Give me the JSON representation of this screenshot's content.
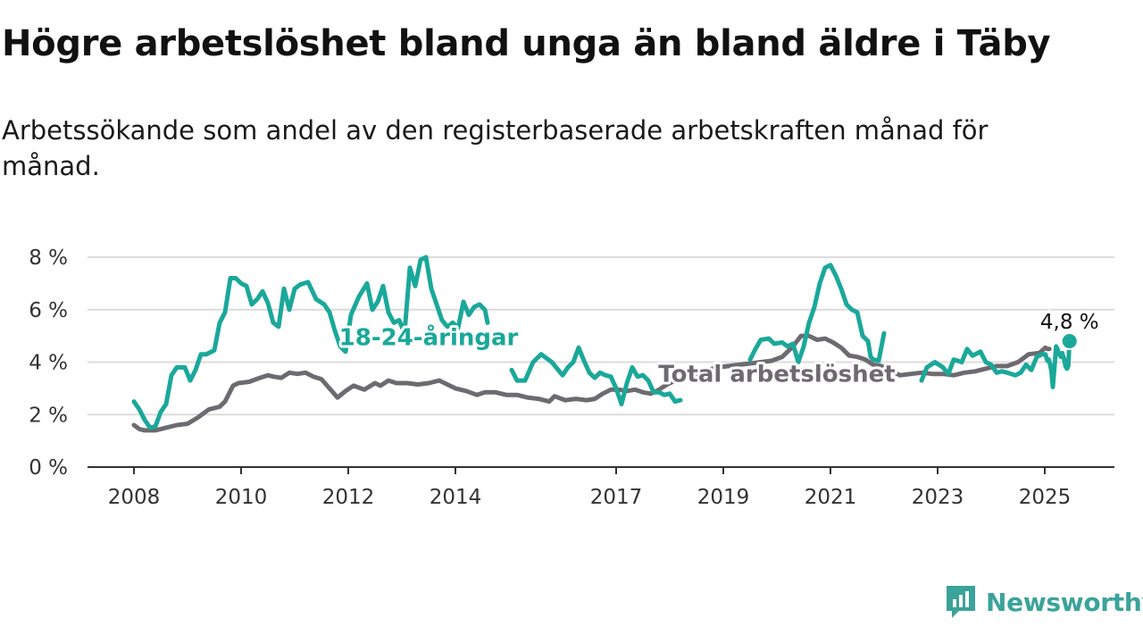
{
  "title": "Högre arbetslöshet bland unga än bland äldre i Täby",
  "subtitle": "Arbetssökande som andel av den registerbaserade arbetskraften månad för månad.",
  "brand": {
    "name": "Newsworthy"
  },
  "chart_data": {
    "type": "line",
    "xlim": [
      2007.85,
      2025.95
    ],
    "ylim": [
      0,
      8
    ],
    "x_ticks": [
      {
        "value": 2008,
        "label": "2008"
      },
      {
        "value": 2010,
        "label": "2010"
      },
      {
        "value": 2012,
        "label": "2012"
      },
      {
        "value": 2014,
        "label": "2014"
      },
      {
        "value": 2017,
        "label": "2017"
      },
      {
        "value": 2019,
        "label": "2019"
      },
      {
        "value": 2021,
        "label": "2021"
      },
      {
        "value": 2023,
        "label": "2023"
      },
      {
        "value": 2025,
        "label": "2025"
      }
    ],
    "y_ticks": [
      {
        "value": 0,
        "label": "0 %"
      },
      {
        "value": 2,
        "label": "2 %"
      },
      {
        "value": 4,
        "label": "4 %"
      },
      {
        "value": 6,
        "label": "6 %"
      },
      {
        "value": 8,
        "label": "8 %"
      }
    ],
    "grid": true,
    "series": [
      {
        "name": "Total arbetslöshet",
        "color": "#6d6a70",
        "points": [
          [
            2008.0,
            1.6
          ],
          [
            2008.1,
            1.45
          ],
          [
            2008.2,
            1.4
          ],
          [
            2008.4,
            1.4
          ],
          [
            2008.6,
            1.5
          ],
          [
            2008.8,
            1.6
          ],
          [
            2009.0,
            1.65
          ],
          [
            2009.2,
            1.9
          ],
          [
            2009.4,
            2.2
          ],
          [
            2009.6,
            2.3
          ],
          [
            2009.7,
            2.5
          ],
          [
            2009.85,
            3.1
          ],
          [
            2009.95,
            3.2
          ],
          [
            2010.15,
            3.25
          ],
          [
            2010.35,
            3.4
          ],
          [
            2010.5,
            3.5
          ],
          [
            2010.6,
            3.45
          ],
          [
            2010.75,
            3.4
          ],
          [
            2010.9,
            3.6
          ],
          [
            2011.05,
            3.55
          ],
          [
            2011.2,
            3.6
          ],
          [
            2011.35,
            3.45
          ],
          [
            2011.5,
            3.35
          ],
          [
            2011.65,
            3.0
          ],
          [
            2011.8,
            2.65
          ],
          [
            2011.95,
            2.9
          ],
          [
            2012.1,
            3.1
          ],
          [
            2012.3,
            2.95
          ],
          [
            2012.5,
            3.2
          ],
          [
            2012.6,
            3.1
          ],
          [
            2012.75,
            3.3
          ],
          [
            2012.9,
            3.2
          ],
          [
            2013.1,
            3.2
          ],
          [
            2013.3,
            3.15
          ],
          [
            2013.5,
            3.2
          ],
          [
            2013.7,
            3.3
          ],
          [
            2013.85,
            3.15
          ],
          [
            2014.0,
            3.0
          ],
          [
            2014.2,
            2.9
          ],
          [
            2014.4,
            2.75
          ],
          [
            2014.55,
            2.85
          ],
          [
            2014.75,
            2.85
          ],
          [
            2014.95,
            2.75
          ],
          [
            2015.15,
            2.75
          ],
          [
            2015.35,
            2.65
          ],
          [
            2015.55,
            2.6
          ],
          [
            2015.75,
            2.5
          ],
          [
            2015.85,
            2.7
          ],
          [
            2016.05,
            2.55
          ],
          [
            2016.25,
            2.6
          ],
          [
            2016.45,
            2.55
          ],
          [
            2016.6,
            2.6
          ],
          [
            2016.75,
            2.8
          ],
          [
            2016.9,
            2.95
          ],
          [
            2017.05,
            2.95
          ],
          [
            2017.2,
            2.9
          ],
          [
            2017.35,
            2.95
          ],
          [
            2017.5,
            2.85
          ],
          [
            2017.65,
            2.8
          ],
          [
            2017.8,
            2.95
          ],
          [
            2017.95,
            3.15
          ],
          [
            2018.1,
            3.3
          ],
          [
            2018.3,
            3.4
          ],
          [
            2018.5,
            3.55
          ],
          [
            2018.7,
            3.7
          ],
          [
            2018.9,
            3.8
          ],
          [
            2019.1,
            3.85
          ],
          [
            2019.3,
            3.9
          ],
          [
            2019.5,
            3.95
          ],
          [
            2019.7,
            4.0
          ],
          [
            2019.9,
            4.05
          ],
          [
            2020.1,
            4.2
          ],
          [
            2020.3,
            4.6
          ],
          [
            2020.45,
            5.0
          ],
          [
            2020.6,
            5.0
          ],
          [
            2020.75,
            4.85
          ],
          [
            2020.9,
            4.9
          ],
          [
            2021.05,
            4.75
          ],
          [
            2021.2,
            4.55
          ],
          [
            2021.35,
            4.25
          ],
          [
            2021.5,
            4.2
          ],
          [
            2021.65,
            4.1
          ],
          [
            2021.8,
            3.9
          ],
          [
            2021.95,
            3.85
          ],
          [
            2022.1,
            3.7
          ],
          [
            2022.3,
            3.5
          ],
          [
            2022.5,
            3.55
          ],
          [
            2022.7,
            3.6
          ],
          [
            2022.9,
            3.55
          ],
          [
            2023.1,
            3.55
          ],
          [
            2023.3,
            3.5
          ],
          [
            2023.5,
            3.6
          ],
          [
            2023.7,
            3.65
          ],
          [
            2023.9,
            3.75
          ],
          [
            2024.1,
            3.85
          ],
          [
            2024.3,
            3.85
          ],
          [
            2024.5,
            4.0
          ],
          [
            2024.7,
            4.3
          ],
          [
            2024.9,
            4.35
          ],
          [
            2025.05,
            4.55
          ],
          [
            2025.2,
            4.5
          ],
          [
            2025.35,
            4.5
          ]
        ]
      },
      {
        "name": "18-24-åringar",
        "color": "#1aa89a",
        "points": [
          [
            2008.0,
            2.5
          ],
          [
            2008.1,
            2.2
          ],
          [
            2008.2,
            1.8
          ],
          [
            2008.3,
            1.5
          ],
          [
            2008.4,
            1.55
          ],
          [
            2008.5,
            2.1
          ],
          [
            2008.6,
            2.4
          ],
          [
            2008.7,
            3.5
          ],
          [
            2008.8,
            3.8
          ],
          [
            2008.95,
            3.8
          ],
          [
            2009.05,
            3.3
          ],
          [
            2009.15,
            3.7
          ],
          [
            2009.25,
            4.3
          ],
          [
            2009.35,
            4.3
          ],
          [
            2009.5,
            4.45
          ],
          [
            2009.6,
            5.5
          ],
          [
            2009.7,
            5.9
          ],
          [
            2009.8,
            7.2
          ],
          [
            2009.9,
            7.2
          ],
          [
            2010.0,
            7.0
          ],
          [
            2010.1,
            6.9
          ],
          [
            2010.2,
            6.2
          ],
          [
            2010.3,
            6.4
          ],
          [
            2010.4,
            6.7
          ],
          [
            2010.5,
            6.25
          ],
          [
            2010.6,
            5.5
          ],
          [
            2010.7,
            5.35
          ],
          [
            2010.8,
            6.8
          ],
          [
            2010.9,
            6.0
          ],
          [
            2011.0,
            6.8
          ],
          [
            2011.1,
            6.95
          ],
          [
            2011.25,
            7.05
          ],
          [
            2011.4,
            6.4
          ],
          [
            2011.55,
            6.2
          ],
          [
            2011.65,
            5.9
          ],
          [
            2011.75,
            5.2
          ],
          [
            2011.85,
            4.6
          ],
          [
            2011.95,
            4.4
          ],
          [
            2012.05,
            5.8
          ],
          [
            2012.2,
            6.5
          ],
          [
            2012.35,
            7.0
          ],
          [
            2012.45,
            6.0
          ],
          [
            2012.55,
            6.3
          ],
          [
            2012.65,
            6.9
          ],
          [
            2012.75,
            5.9
          ],
          [
            2012.85,
            5.5
          ],
          [
            2012.95,
            5.6
          ],
          [
            2013.05,
            5.1
          ],
          [
            2013.15,
            7.6
          ],
          [
            2013.25,
            6.9
          ],
          [
            2013.35,
            7.9
          ],
          [
            2013.45,
            8.0
          ],
          [
            2013.55,
            6.8
          ],
          [
            2013.65,
            6.2
          ],
          [
            2013.75,
            5.6
          ],
          [
            2013.85,
            5.35
          ],
          [
            2013.95,
            5.5
          ],
          [
            2014.05,
            5.3
          ],
          [
            2014.15,
            6.3
          ],
          [
            2014.25,
            5.8
          ],
          [
            2014.35,
            6.1
          ],
          [
            2014.45,
            6.2
          ],
          [
            2014.55,
            6.0
          ],
          [
            2014.6,
            5.5
          ]
        ]
      },
      {
        "name": "",
        "color": "#1aa89a",
        "points": [
          [
            2015.05,
            3.7
          ],
          [
            2015.15,
            3.3
          ],
          [
            2015.3,
            3.3
          ],
          [
            2015.45,
            4.0
          ],
          [
            2015.6,
            4.3
          ],
          [
            2015.8,
            4.0
          ],
          [
            2016.0,
            3.5
          ],
          [
            2016.1,
            3.8
          ],
          [
            2016.2,
            4.0
          ],
          [
            2016.3,
            4.55
          ],
          [
            2016.4,
            4.05
          ],
          [
            2016.5,
            3.6
          ],
          [
            2016.6,
            3.4
          ],
          [
            2016.7,
            3.6
          ],
          [
            2016.8,
            3.5
          ],
          [
            2016.9,
            3.45
          ],
          [
            2017.0,
            3.0
          ],
          [
            2017.1,
            2.4
          ],
          [
            2017.2,
            3.2
          ],
          [
            2017.3,
            3.8
          ],
          [
            2017.4,
            3.45
          ],
          [
            2017.5,
            3.5
          ],
          [
            2017.6,
            3.3
          ],
          [
            2017.7,
            2.85
          ],
          [
            2017.8,
            2.85
          ],
          [
            2017.9,
            2.75
          ],
          [
            2018.0,
            2.8
          ],
          [
            2018.1,
            2.5
          ],
          [
            2018.2,
            2.55
          ]
        ]
      },
      {
        "name": "",
        "color": "#1aa89a",
        "points": [
          [
            2019.5,
            4.1
          ],
          [
            2019.6,
            4.5
          ],
          [
            2019.7,
            4.85
          ],
          [
            2019.85,
            4.9
          ],
          [
            2019.95,
            4.7
          ],
          [
            2020.1,
            4.75
          ],
          [
            2020.2,
            4.6
          ],
          [
            2020.3,
            4.7
          ],
          [
            2020.4,
            4.0
          ],
          [
            2020.5,
            4.6
          ],
          [
            2020.6,
            5.5
          ],
          [
            2020.7,
            6.1
          ],
          [
            2020.8,
            7.0
          ],
          [
            2020.9,
            7.6
          ],
          [
            2021.0,
            7.7
          ],
          [
            2021.1,
            7.3
          ],
          [
            2021.2,
            6.8
          ],
          [
            2021.3,
            6.2
          ],
          [
            2021.4,
            6.0
          ],
          [
            2021.5,
            5.9
          ],
          [
            2021.6,
            5.0
          ],
          [
            2021.7,
            4.8
          ],
          [
            2021.75,
            4.2
          ],
          [
            2021.8,
            4.1
          ],
          [
            2021.9,
            4.05
          ],
          [
            2022.0,
            5.1
          ]
        ]
      },
      {
        "name": "",
        "color": "#1aa89a",
        "points": [
          [
            2022.7,
            3.3
          ],
          [
            2022.8,
            3.8
          ],
          [
            2022.95,
            4.0
          ],
          [
            2023.1,
            3.8
          ],
          [
            2023.2,
            3.55
          ],
          [
            2023.3,
            4.1
          ],
          [
            2023.45,
            4.0
          ],
          [
            2023.55,
            4.5
          ],
          [
            2023.65,
            4.25
          ],
          [
            2023.8,
            4.4
          ],
          [
            2023.9,
            4.0
          ],
          [
            2024.0,
            3.9
          ],
          [
            2024.1,
            3.6
          ],
          [
            2024.2,
            3.65
          ],
          [
            2024.3,
            3.6
          ],
          [
            2024.45,
            3.5
          ],
          [
            2024.55,
            3.6
          ],
          [
            2024.65,
            3.9
          ],
          [
            2024.75,
            3.7
          ],
          [
            2024.85,
            4.2
          ],
          [
            2024.95,
            4.3
          ],
          [
            2025.05,
            4.3
          ],
          [
            2025.2,
            4.05
          ],
          [
            2025.3,
            4.1
          ],
          [
            2025.4,
            3.9
          ],
          [
            2025.5,
            3.65
          ],
          [
            2025.6,
            3.05
          ],
          [
            2025.75,
            4.0
          ],
          [
            2025.85,
            4.6
          ],
          [
            2025.95,
            4.5
          ],
          [
            2026.05,
            4.3
          ],
          [
            2026.1,
            4.3
          ],
          [
            2026.2,
            4.2
          ],
          [
            2026.3,
            4.35
          ],
          [
            2026.45,
            4.1
          ],
          [
            2026.55,
            3.85
          ],
          [
            2026.65,
            3.75
          ],
          [
            2026.75,
            3.85
          ],
          [
            2026.85,
            4.8
          ]
        ]
      }
    ],
    "series_labels": [
      {
        "text": "18-24-åringar",
        "x": 2013.5,
        "y": 4.65,
        "color": "#1aa89a"
      },
      {
        "text": "Total arbetslöshet",
        "x": 2020.0,
        "y": 3.25,
        "color": "#6d6a70"
      }
    ],
    "end_label": {
      "text": "4,8 %",
      "x": 2026.85,
      "y": 4.8
    }
  }
}
